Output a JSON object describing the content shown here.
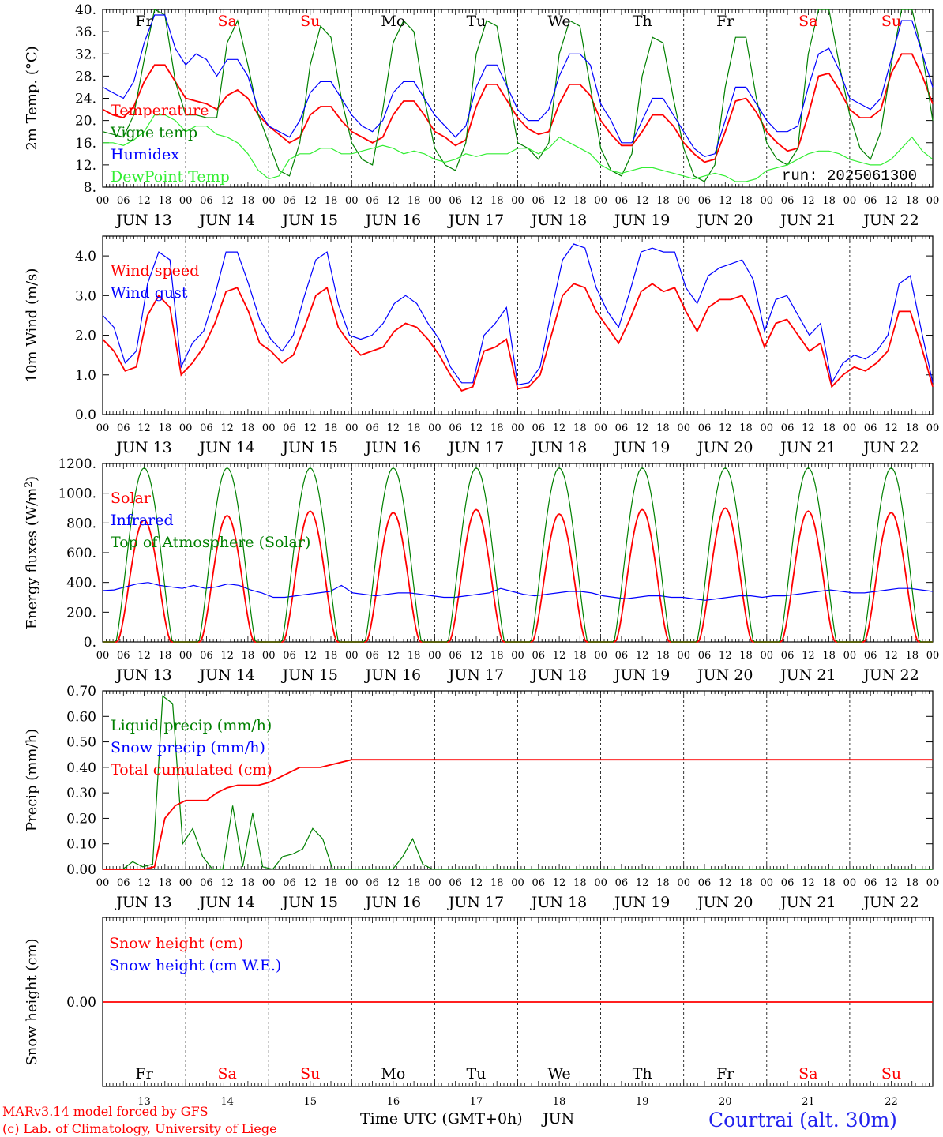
{
  "figure": {
    "run_label": "run: 2025061300",
    "credit_lines": [
      "MARv3.14 model forced by GFS",
      "(c) Lab. of Climatology, University of Liege"
    ],
    "station": "Courtrai (alt. 30m)",
    "time_axis_title": "Time UTC (GMT+0h)",
    "month_label": "JUN",
    "hour_ticks": [
      "00",
      "06",
      "12",
      "18"
    ],
    "days": [
      {
        "abbr": "Fr",
        "date": "13",
        "label": "JUN 13",
        "weekend": false
      },
      {
        "abbr": "Sa",
        "date": "14",
        "label": "JUN 14",
        "weekend": true
      },
      {
        "abbr": "Su",
        "date": "15",
        "label": "JUN 15",
        "weekend": true
      },
      {
        "abbr": "Mo",
        "date": "16",
        "label": "JUN 16",
        "weekend": false
      },
      {
        "abbr": "Tu",
        "date": "17",
        "label": "JUN 17",
        "weekend": false
      },
      {
        "abbr": "We",
        "date": "18",
        "label": "JUN 18",
        "weekend": false
      },
      {
        "abbr": "Th",
        "date": "19",
        "label": "JUN 19",
        "weekend": false
      },
      {
        "abbr": "Fr",
        "date": "20",
        "label": "JUN 20",
        "weekend": false
      },
      {
        "abbr": "Sa",
        "date": "21",
        "label": "JUN 21",
        "weekend": true
      },
      {
        "abbr": "Su",
        "date": "22",
        "label": "JUN 22",
        "weekend": true
      }
    ],
    "colors": {
      "red": "#ff0000",
      "green": "#008000",
      "blue": "#0000ff",
      "light_green": "#33ee33",
      "weekend_text": "#ff0000",
      "station_text": "#2222ee"
    }
  },
  "chart_data": [
    {
      "type": "line",
      "id": "temp",
      "ylabel": "2m Temp. (°C)",
      "ylim": [
        8,
        40
      ],
      "yticks": [
        "8.",
        "12.",
        "16.",
        "20.",
        "24.",
        "28.",
        "32.",
        "36.",
        "40."
      ],
      "ytick_values": [
        8,
        12,
        16,
        20,
        24,
        28,
        32,
        36,
        40
      ],
      "x_unit": "hours since JUN 13 00 UTC (3-hourly)",
      "series": [
        {
          "name": "Temperature",
          "color": "red",
          "values": [
            22,
            21,
            20.5,
            22.5,
            27,
            30,
            30,
            27,
            24,
            23.5,
            23,
            22,
            24.5,
            25.5,
            24,
            21,
            19,
            17.5,
            16,
            17,
            21,
            22.5,
            22.5,
            20,
            18,
            17,
            16,
            17,
            21,
            23.5,
            23.5,
            21,
            18,
            17,
            15.5,
            16.5,
            22.5,
            26.5,
            26.5,
            23.5,
            20.5,
            18.5,
            17.5,
            18,
            23,
            26.5,
            26.5,
            24.5,
            20,
            17.5,
            15.5,
            15.5,
            18,
            21,
            21,
            19,
            16,
            14,
            12.5,
            13,
            18,
            23.5,
            24,
            21.5,
            18,
            16,
            14.5,
            15,
            21,
            28,
            28.5,
            25.5,
            22,
            20.5,
            20.5,
            22,
            28.5,
            32,
            32,
            28,
            23
          ]
        },
        {
          "name": "Vigne temp",
          "color": "green",
          "values": [
            18,
            17.5,
            17,
            21,
            31,
            40,
            39,
            27,
            21,
            21,
            20.5,
            20.5,
            34,
            38,
            30,
            21,
            16,
            11,
            10,
            16,
            30,
            37,
            35,
            24,
            16,
            13,
            12,
            22,
            34,
            38,
            36,
            24,
            15,
            12,
            11,
            16,
            32,
            38,
            37,
            26,
            16,
            15,
            13,
            16,
            32,
            38,
            37,
            26,
            15,
            11,
            10,
            14,
            28,
            35,
            34,
            24,
            15,
            10,
            9,
            12,
            26,
            35,
            35,
            24,
            16,
            13,
            12,
            15,
            32,
            40,
            40,
            30,
            21,
            15,
            13,
            18,
            30,
            40,
            40,
            32,
            20
          ]
        },
        {
          "name": "Humidex",
          "color": "blue",
          "values": [
            26,
            25,
            24,
            27,
            34,
            39,
            39,
            33,
            30,
            32,
            31,
            28,
            31,
            31,
            28,
            22,
            19,
            18,
            17,
            20,
            25,
            27,
            27,
            24,
            21,
            19,
            18,
            20,
            25,
            27,
            27,
            24,
            21,
            19,
            17,
            19,
            26,
            30,
            30,
            26,
            22,
            20,
            20,
            22,
            28,
            32,
            32,
            30,
            23,
            20,
            16,
            16,
            20,
            24,
            24,
            21,
            18,
            15,
            13.5,
            14,
            20,
            26,
            26,
            23,
            20,
            18,
            18,
            19,
            26,
            32,
            33,
            29,
            24,
            23,
            22,
            24,
            31,
            38,
            38,
            32,
            26
          ]
        },
        {
          "name": "DewPoint Temp",
          "color": "light_green",
          "values": [
            16,
            16,
            15.5,
            16.5,
            18,
            21,
            21,
            20,
            18,
            19,
            19,
            17.5,
            17,
            16,
            14,
            11,
            9.5,
            10,
            13,
            14,
            14,
            15,
            15,
            14,
            14,
            14.5,
            15,
            15.5,
            15,
            14,
            14.5,
            14,
            13,
            12.5,
            13,
            14,
            13.5,
            14,
            14,
            14,
            15,
            15,
            14,
            15,
            17,
            16,
            15,
            14,
            12,
            11,
            10.5,
            11,
            11.5,
            11.5,
            11,
            10.5,
            10,
            9.5,
            10,
            10.5,
            10,
            9,
            9,
            9.5,
            11,
            11.5,
            12,
            13,
            14,
            14.5,
            14.5,
            14,
            13,
            12.5,
            12,
            12,
            13,
            15,
            17,
            14.5,
            13
          ]
        }
      ]
    },
    {
      "type": "line",
      "id": "wind",
      "ylabel": "10m Wind (m/s)",
      "ylim": [
        0,
        4.5
      ],
      "yticks": [
        "0.0",
        "1.0",
        "2.0",
        "3.0",
        "4.0"
      ],
      "ytick_values": [
        0,
        1,
        2,
        3,
        4
      ],
      "series": [
        {
          "name": "Wind speed",
          "color": "red",
          "values": [
            1.9,
            1.6,
            1.1,
            1.2,
            2.5,
            3.0,
            2.7,
            1.0,
            1.3,
            1.7,
            2.3,
            3.1,
            3.2,
            2.6,
            1.8,
            1.6,
            1.3,
            1.5,
            2.2,
            3.0,
            3.2,
            2.2,
            1.8,
            1.5,
            1.6,
            1.7,
            2.1,
            2.3,
            2.2,
            1.9,
            1.5,
            1.0,
            0.6,
            0.7,
            1.6,
            1.7,
            1.9,
            0.65,
            0.7,
            1.0,
            2.0,
            3.0,
            3.3,
            3.2,
            2.6,
            2.2,
            1.8,
            2.4,
            3.1,
            3.3,
            3.1,
            3.2,
            2.6,
            2.1,
            2.7,
            2.9,
            2.9,
            3.0,
            2.5,
            1.7,
            2.3,
            2.4,
            2.0,
            1.6,
            1.8,
            0.7,
            1.0,
            1.2,
            1.1,
            1.3,
            1.6,
            2.6,
            2.6,
            1.7,
            0.7
          ]
        },
        {
          "name": "Wind gust",
          "color": "blue",
          "values": [
            2.5,
            2.2,
            1.3,
            1.6,
            3.3,
            4.1,
            3.9,
            1.2,
            1.8,
            2.1,
            3.0,
            4.1,
            4.1,
            3.3,
            2.4,
            1.9,
            1.6,
            2.0,
            3.0,
            3.9,
            4.1,
            2.8,
            2.0,
            1.9,
            2.0,
            2.3,
            2.8,
            3.0,
            2.8,
            2.3,
            1.9,
            1.2,
            0.8,
            0.8,
            2.0,
            2.3,
            2.7,
            0.75,
            0.8,
            1.2,
            2.6,
            3.9,
            4.3,
            4.2,
            3.2,
            2.6,
            2.2,
            3.1,
            4.1,
            4.2,
            4.1,
            4.1,
            3.2,
            2.8,
            3.5,
            3.7,
            3.8,
            3.9,
            3.4,
            2.1,
            2.9,
            3.0,
            2.5,
            2.0,
            2.3,
            0.8,
            1.3,
            1.5,
            1.4,
            1.6,
            2.0,
            3.3,
            3.5,
            2.1,
            0.8
          ]
        }
      ]
    },
    {
      "type": "line",
      "id": "energy",
      "ylabel": "Energy fluxes (W/m²)",
      "ylim": [
        0,
        1200
      ],
      "yticks": [
        "0.",
        "200.",
        "400.",
        "600.",
        "800.",
        "1000.",
        "1200."
      ],
      "ytick_values": [
        0,
        200,
        400,
        600,
        800,
        1000,
        1200
      ],
      "daily_peaks": {
        "solar": [
          820,
          850,
          880,
          870,
          890,
          860,
          890,
          900,
          880,
          870
        ],
        "toa_solar": [
          1170,
          1170,
          1170,
          1170,
          1170,
          1170,
          1170,
          1170,
          1170,
          1170
        ]
      },
      "series": [
        {
          "name": "Solar",
          "color": "red",
          "values": []
        },
        {
          "name": "Infrared",
          "color": "blue",
          "values": [
            345,
            350,
            370,
            390,
            400,
            380,
            370,
            360,
            380,
            360,
            370,
            390,
            380,
            350,
            330,
            300,
            300,
            310,
            320,
            330,
            340,
            380,
            330,
            320,
            310,
            320,
            330,
            330,
            320,
            310,
            300,
            300,
            310,
            320,
            330,
            360,
            340,
            320,
            310,
            320,
            330,
            340,
            340,
            330,
            310,
            300,
            290,
            300,
            310,
            310,
            300,
            300,
            290,
            280,
            290,
            300,
            310,
            310,
            300,
            310,
            310,
            320,
            330,
            340,
            350,
            340,
            330,
            330,
            340,
            350,
            360,
            360,
            350,
            340
          ]
        },
        {
          "name": "Top of Atmosphere (Solar)",
          "color": "green",
          "values": []
        }
      ]
    },
    {
      "type": "line",
      "id": "precip",
      "ylabel": "Precip (mm/h)",
      "ylim": [
        0,
        0.7
      ],
      "yticks": [
        "0.00",
        "0.10",
        "0.20",
        "0.30",
        "0.40",
        "0.50",
        "0.60",
        "0.70"
      ],
      "ytick_values": [
        0,
        0.1,
        0.2,
        0.3,
        0.4,
        0.5,
        0.6,
        0.7
      ],
      "series": [
        {
          "name": "Liquid precip (mm/h)",
          "color": "green",
          "values": [
            0,
            0,
            0,
            0.03,
            0.01,
            0.02,
            0.68,
            0.65,
            0.1,
            0.16,
            0.05,
            0,
            0,
            0.25,
            0.01,
            0.22,
            0.01,
            0,
            0.05,
            0.06,
            0.08,
            0.16,
            0.12,
            0,
            0,
            0,
            0,
            0,
            0,
            0,
            0.05,
            0.12,
            0.02,
            0,
            0,
            0,
            0,
            0,
            0,
            0,
            0,
            0,
            0,
            0,
            0,
            0,
            0,
            0,
            0,
            0,
            0,
            0,
            0,
            0,
            0,
            0,
            0,
            0,
            0,
            0,
            0,
            0,
            0,
            0,
            0,
            0,
            0,
            0,
            0,
            0,
            0,
            0,
            0,
            0,
            0,
            0,
            0,
            0,
            0,
            0,
            0,
            0,
            0,
            0
          ]
        },
        {
          "name": "Snow precip (mm/h)",
          "color": "blue",
          "values": []
        },
        {
          "name": "Total cumulated (cm)",
          "color": "red",
          "values": [
            0,
            0,
            0,
            0,
            0,
            0.01,
            0.2,
            0.25,
            0.27,
            0.27,
            0.27,
            0.3,
            0.32,
            0.33,
            0.33,
            0.33,
            0.34,
            0.36,
            0.38,
            0.4,
            0.4,
            0.4,
            0.41,
            0.42,
            0.43,
            0.43,
            0.43,
            0.43,
            0.43,
            0.43,
            0.43,
            0.43,
            0.43,
            0.43,
            0.43,
            0.43,
            0.43,
            0.43,
            0.43,
            0.43,
            0.43,
            0.43,
            0.43,
            0.43,
            0.43,
            0.43,
            0.43,
            0.43,
            0.43,
            0.43,
            0.43,
            0.43,
            0.43,
            0.43,
            0.43,
            0.43,
            0.43,
            0.43,
            0.43,
            0.43,
            0.43,
            0.43,
            0.43,
            0.43,
            0.43,
            0.43,
            0.43,
            0.43,
            0.43,
            0.43,
            0.43,
            0.43,
            0.43,
            0.43,
            0.43,
            0.43,
            0.43,
            0.43,
            0.43,
            0.43,
            0.43
          ]
        }
      ]
    },
    {
      "type": "line",
      "id": "snow",
      "ylabel": "Snow height (cm)",
      "ylim": [
        -1,
        1
      ],
      "yticks": [
        "0.00"
      ],
      "ytick_values": [
        0
      ],
      "series": [
        {
          "name": "Snow height (cm)",
          "color": "red",
          "values": [
            0,
            0
          ]
        },
        {
          "name": "Snow height (cm W.E.)",
          "color": "blue",
          "values": []
        }
      ]
    }
  ]
}
